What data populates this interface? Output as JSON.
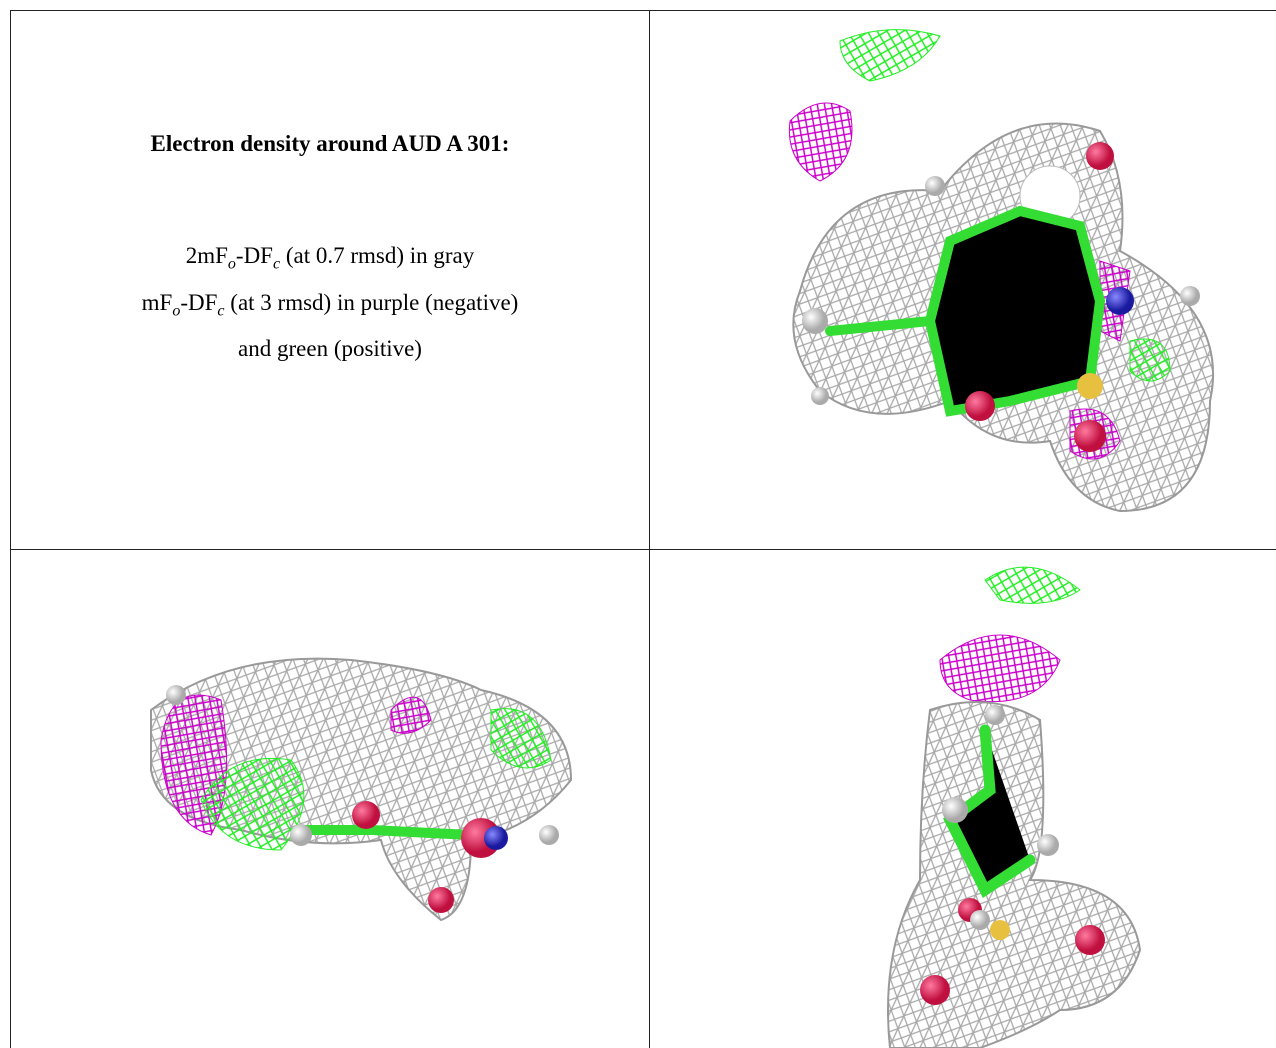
{
  "caption": {
    "title": "Electron density around AUD A 301:",
    "lines": [
      [
        "2mF",
        "o",
        "-DF",
        "c",
        " (at 0.7 rmsd) in gray"
      ],
      [
        "mF",
        "o",
        "-DF",
        "c",
        " (at 3 rmsd) in purple (negative)"
      ],
      [
        "and green (positive)"
      ]
    ]
  }
}
